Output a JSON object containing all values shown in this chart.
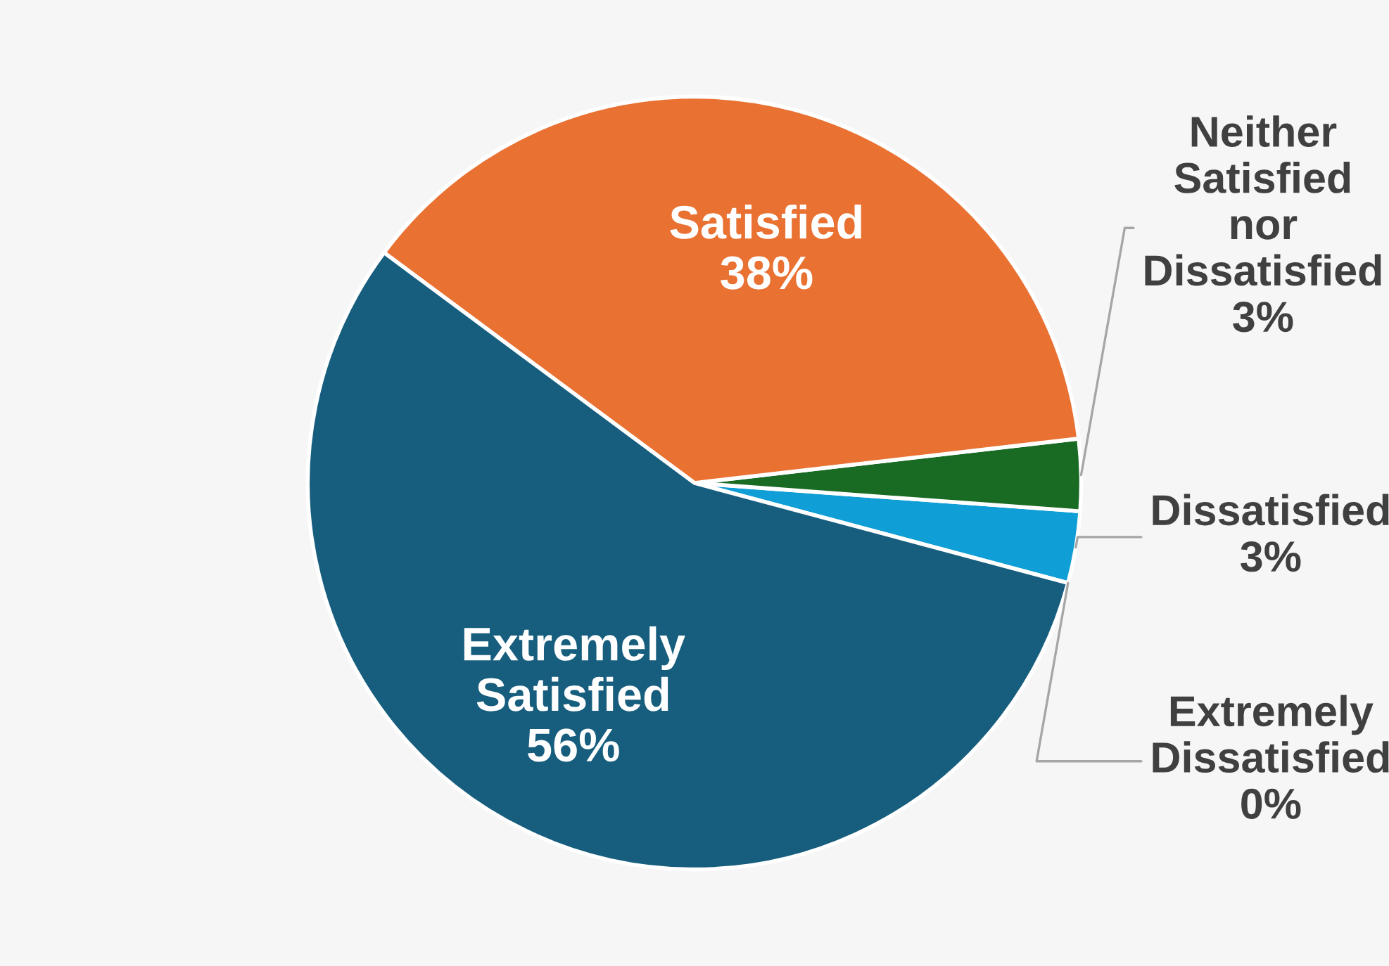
{
  "chart_data": {
    "type": "pie",
    "categories": [
      "Extremely Dissatisfied",
      "Dissatisfied",
      "Neither Satisfied nor Dissatisfied",
      "Satisfied",
      "Extremely Satisfied"
    ],
    "values": [
      0,
      3,
      3,
      38,
      56
    ],
    "value_labels": [
      "0%",
      "3%",
      "3%",
      "38%",
      "56%"
    ],
    "colors": [
      "#a02b93",
      "#0f9ed5",
      "#196b24",
      "#e97132",
      "#175e7e"
    ]
  }
}
